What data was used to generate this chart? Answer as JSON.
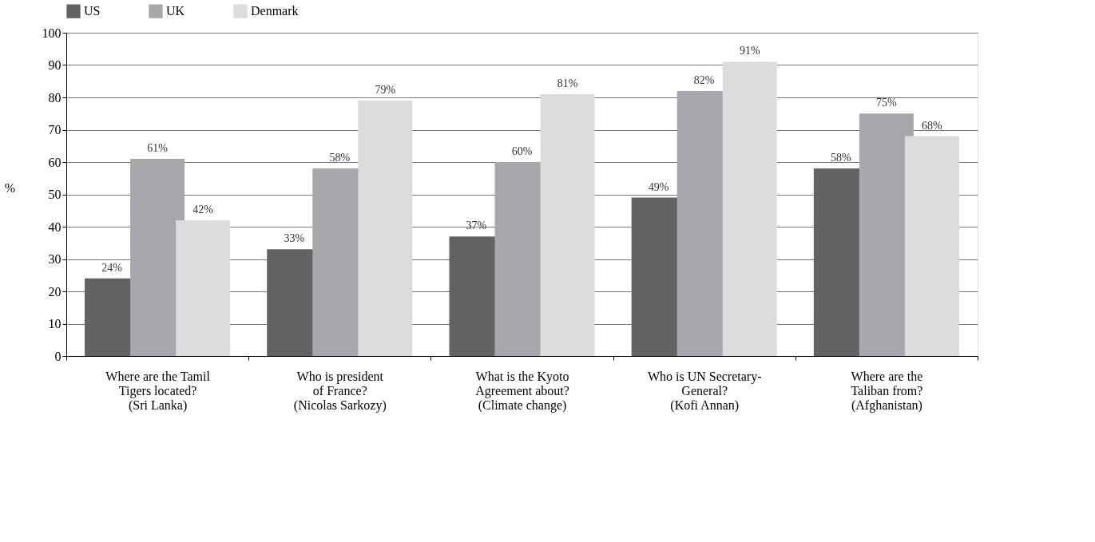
{
  "chart_data": {
    "type": "bar",
    "ylabel": "%",
    "categories": [
      "Where are the Tamil\nTigers located?\n(Sri Lanka)",
      "Who is president\nof France?\n(Nicolas Sarkozy)",
      "What is the Kyoto\nAgreement about?\n(Climate change)",
      "Who is UN Secretary-\nGeneral?\n(Kofi Annan)",
      "Where are the\nTaliban from?\n(Afghanistan)"
    ],
    "series": [
      {
        "name": "US",
        "color": "#636366",
        "values": [
          24,
          33,
          37,
          49,
          58
        ],
        "value_labels": [
          "24%",
          "33%",
          "37%",
          "49%",
          "58%"
        ]
      },
      {
        "name": "UK",
        "color": "#a7a8ab",
        "values": [
          61,
          58,
          60,
          82,
          75
        ],
        "value_labels": [
          "61%",
          "58%",
          "60%",
          "82%",
          "75%"
        ]
      },
      {
        "name": "Denmark",
        "color": "#dcdcde",
        "values": [
          42,
          79,
          81,
          91,
          68
        ],
        "value_labels": [
          "42%",
          "79%",
          "81%",
          "91%",
          "68%"
        ]
      }
    ],
    "ylim": [
      0,
      100
    ],
    "yticks": [
      0,
      10,
      20,
      30,
      40,
      50,
      60,
      70,
      80,
      90,
      100
    ],
    "grid": "y",
    "legend": "top"
  }
}
